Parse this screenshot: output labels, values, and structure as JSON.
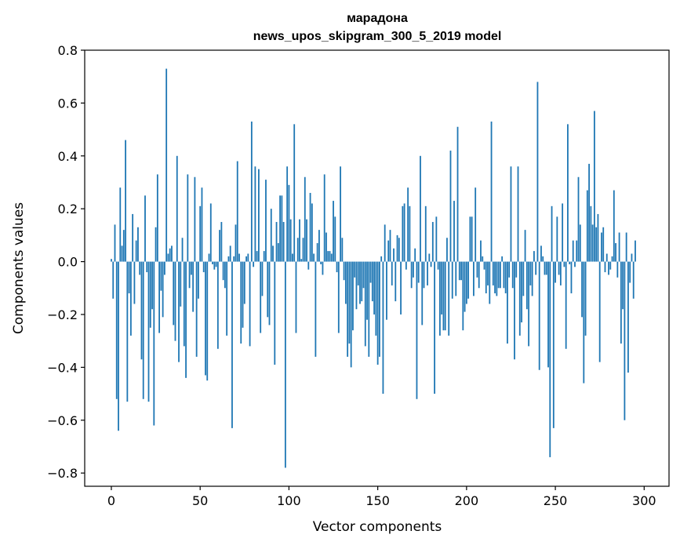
{
  "chart_data": {
    "type": "bar",
    "title": "марадона",
    "subtitle": "news_upos_skipgram_300_5_2019 model",
    "xlabel": "Vector components",
    "ylabel": "Components values",
    "xlim": [
      -15,
      314
    ],
    "ylim": [
      -0.85,
      0.8
    ],
    "xticks": [
      0,
      50,
      100,
      150,
      200,
      250,
      300
    ],
    "xtick_labels": [
      "0",
      "50",
      "100",
      "150",
      "200",
      "250",
      "300"
    ],
    "yticks": [
      -0.8,
      -0.6,
      -0.4,
      -0.2,
      0.0,
      0.2,
      0.4,
      0.6,
      0.8
    ],
    "ytick_labels": [
      "−0.8",
      "−0.6",
      "−0.4",
      "−0.2",
      "0.0",
      "0.2",
      "0.4",
      "0.6",
      "0.8"
    ],
    "grid": false,
    "legend": "none",
    "bar_color": "#1f77b4",
    "values": [
      0.01,
      -0.14,
      0.14,
      -0.52,
      -0.64,
      0.28,
      0.06,
      0.12,
      0.46,
      -0.53,
      -0.12,
      -0.28,
      0.18,
      -0.16,
      0.08,
      0.13,
      -0.05,
      -0.37,
      -0.52,
      0.25,
      -0.04,
      -0.53,
      -0.25,
      -0.18,
      -0.62,
      0.13,
      0.33,
      -0.27,
      -0.11,
      -0.21,
      -0.05,
      0.73,
      0.03,
      0.05,
      0.06,
      -0.24,
      -0.3,
      0.4,
      -0.38,
      -0.17,
      0.09,
      -0.32,
      -0.44,
      0.33,
      -0.1,
      -0.05,
      -0.19,
      0.32,
      -0.36,
      -0.14,
      0.21,
      0.28,
      -0.04,
      -0.43,
      -0.45,
      0.03,
      0.22,
      -0.01,
      -0.03,
      -0.02,
      -0.33,
      0.12,
      0.15,
      -0.07,
      -0.1,
      -0.28,
      0.02,
      0.06,
      -0.63,
      0.02,
      0.14,
      0.38,
      0.03,
      -0.31,
      -0.25,
      -0.16,
      0.02,
      0.03,
      -0.32,
      0.53,
      -0.02,
      0.36,
      0.04,
      0.35,
      -0.27,
      -0.13,
      0.04,
      0.31,
      -0.21,
      -0.24,
      0.2,
      0.06,
      -0.39,
      0.15,
      0.07,
      0.25,
      0.25,
      0.15,
      -0.78,
      0.36,
      0.29,
      0.16,
      0.03,
      0.52,
      -0.27,
      0.09,
      0.16,
      0.01,
      0.09,
      0.32,
      0.16,
      -0.03,
      0.26,
      0.22,
      0.03,
      -0.36,
      0.07,
      0.12,
      -0.01,
      -0.05,
      0.33,
      0.11,
      0.04,
      0.04,
      0.03,
      0.23,
      0.17,
      -0.04,
      -0.27,
      0.36,
      0.09,
      -0.07,
      -0.16,
      -0.36,
      -0.31,
      -0.4,
      -0.26,
      -0.06,
      -0.18,
      -0.09,
      -0.16,
      -0.15,
      -0.1,
      -0.32,
      -0.22,
      -0.36,
      -0.08,
      -0.15,
      -0.2,
      -0.28,
      -0.39,
      -0.36,
      0.02,
      -0.5,
      0.14,
      -0.22,
      0.08,
      0.12,
      -0.09,
      0.05,
      -0.15,
      0.1,
      0.09,
      -0.2,
      0.21,
      0.22,
      -0.03,
      0.28,
      0.21,
      -0.1,
      -0.06,
      0.05,
      -0.52,
      -0.08,
      0.4,
      -0.24,
      -0.1,
      0.21,
      -0.09,
      0.03,
      -0.02,
      0.15,
      -0.5,
      0.17,
      -0.03,
      -0.28,
      -0.2,
      -0.26,
      -0.26,
      0.09,
      -0.28,
      0.42,
      -0.14,
      0.23,
      -0.13,
      0.51,
      -0.07,
      -0.07,
      -0.26,
      -0.19,
      -0.16,
      -0.14,
      0.17,
      0.17,
      -0.13,
      0.28,
      -0.06,
      -0.1,
      0.08,
      0.02,
      -0.03,
      -0.12,
      -0.09,
      -0.16,
      0.53,
      -0.09,
      -0.12,
      -0.13,
      -0.1,
      -0.1,
      0.02,
      -0.1,
      -0.12,
      -0.31,
      -0.06,
      0.36,
      -0.1,
      -0.37,
      -0.06,
      0.36,
      -0.28,
      -0.23,
      -0.13,
      0.12,
      -0.18,
      -0.32,
      -0.09,
      -0.13,
      0.04,
      -0.05,
      0.68,
      -0.41,
      0.06,
      0.02,
      -0.05,
      -0.05,
      -0.4,
      -0.74,
      0.21,
      -0.63,
      -0.08,
      0.17,
      -0.05,
      -0.09,
      0.22,
      -0.02,
      -0.33,
      0.52,
      -0.01,
      -0.12,
      0.08,
      -0.02,
      0.08,
      0.32,
      0.14,
      -0.21,
      -0.46,
      -0.28,
      0.27,
      0.37,
      0.21,
      0.14,
      0.57,
      0.13,
      0.18,
      -0.38,
      0.11,
      0.13,
      -0.04,
      0.03,
      -0.05,
      -0.03,
      0.02,
      0.27,
      0.07,
      -0.06,
      0.11,
      -0.31,
      -0.18,
      -0.6,
      0.11,
      -0.42,
      -0.08,
      0.03,
      -0.14,
      0.08
    ]
  }
}
